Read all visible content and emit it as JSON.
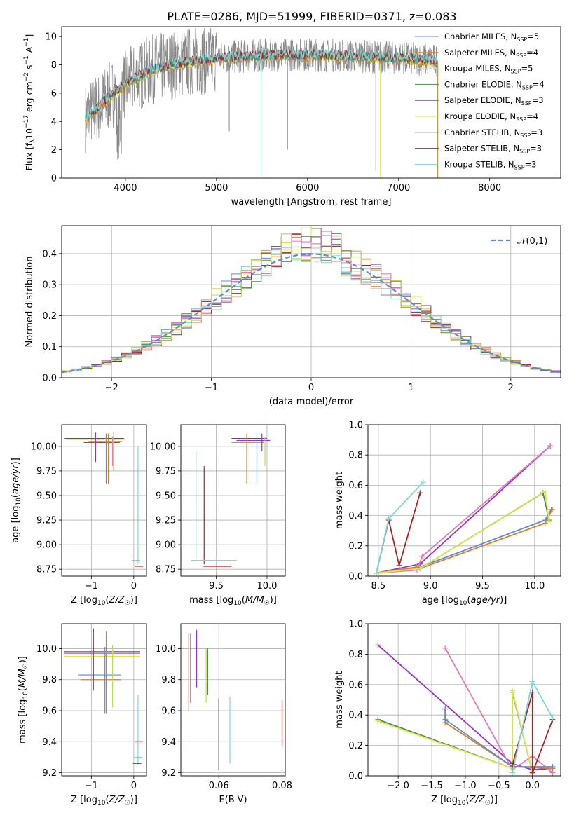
{
  "title": "PLATE=0286, MJD=51999, FIBERID=0371, z=0.083",
  "colors": {
    "Chabrier MILES": "#5b8cd6",
    "Salpeter MILES": "#e07b2a",
    "Kroupa MILES": "#f7c98a",
    "Chabrier ELODIE": "#4d8a4d",
    "Salpeter ELODIE": "#9b30c8",
    "Kroupa ELODIE": "#d8e84a",
    "Chabrier STELIB": "#555555",
    "Salpeter STELIB": "#b22222",
    "Kroupa STELIB": "#7fd6d9",
    "pink": "#e27ab8",
    "lime": "#b8e04a",
    "data": "#888888",
    "gauss": "#5b8cd6"
  },
  "legend_spectrum": [
    {
      "name": "Chabrier MILES",
      "nssp": "5"
    },
    {
      "name": "Salpeter MILES",
      "nssp": "4"
    },
    {
      "name": "Kroupa MILES",
      "nssp": "5"
    },
    {
      "name": "Chabrier ELODIE",
      "nssp": "4"
    },
    {
      "name": "Salpeter ELODIE",
      "nssp": "3"
    },
    {
      "name": "Kroupa ELODIE",
      "nssp": "4"
    },
    {
      "name": "Chabrier STELIB",
      "nssp": "3"
    },
    {
      "name": "Salpeter STELIB",
      "nssp": "3"
    },
    {
      "name": "Kroupa STELIB",
      "nssp": "3"
    }
  ],
  "chart_data": [
    {
      "id": "spectrum",
      "type": "line",
      "xlabel": "wavelength [Angstrom, rest frame]",
      "ylabel": "Flux [f",
      "ylabel_full": "Flux [f_λ 10^-17 erg cm^-2 s^-1 A^-1]",
      "xlim": [
        3300,
        8780
      ],
      "ylim": [
        0,
        10.7
      ],
      "xticks": [
        "4000",
        "5000",
        "6000",
        "7000",
        "8000"
      ],
      "yticks": [
        "0",
        "2",
        "4",
        "6",
        "8",
        "10"
      ],
      "model_continuum": {
        "x": [
          3550,
          3700,
          3900,
          4100,
          4300,
          4500,
          4800,
          5000,
          5300,
          5600,
          6000,
          6400,
          6800,
          7200,
          7420
        ],
        "y": [
          4.2,
          5.0,
          6.2,
          7.0,
          7.7,
          8.0,
          8.3,
          8.5,
          8.6,
          8.7,
          8.7,
          8.65,
          8.55,
          8.4,
          8.3
        ]
      },
      "grid": false
    },
    {
      "id": "residual-hist",
      "type": "histogram",
      "xlabel": "(data-model)/error",
      "ylabel": "Normed distribution",
      "xlim": [
        -2.5,
        2.5
      ],
      "ylim": [
        0,
        0.49
      ],
      "xticks": [
        "−2",
        "−1",
        "0",
        "1",
        "2"
      ],
      "yticks": [
        "0.0",
        "0.1",
        "0.2",
        "0.3",
        "0.4"
      ],
      "legend": "𝒩(0,1)",
      "bin_width": 0.1,
      "grid": true
    },
    {
      "id": "age-vs-Z",
      "type": "errorbar",
      "xlabel": "Z [log10(Z/Z☉)]",
      "ylabel": "age [log10(age/yr)]",
      "xlim": [
        -1.7,
        0.3
      ],
      "ylim": [
        8.68,
        10.22
      ],
      "xticks": [
        "−1",
        "0"
      ],
      "yticks": [
        "8.75",
        "9.00",
        "9.25",
        "9.50",
        "9.75",
        "10.00"
      ],
      "grid": true
    },
    {
      "id": "age-vs-mass",
      "type": "errorbar",
      "xlabel": "mass [log10(M/M☉)]",
      "ylabel": "",
      "xlim": [
        9.15,
        10.18
      ],
      "ylim": [
        8.68,
        10.22
      ],
      "xticks": [
        "9.5",
        "10.0"
      ],
      "yticks": [
        "8.75",
        "9.00",
        "9.25",
        "9.50",
        "9.75",
        "10.00"
      ],
      "grid": true
    },
    {
      "id": "weight-vs-age",
      "type": "line",
      "xlabel": "age [log10(age/yr)]",
      "ylabel": "mass weight",
      "xlim": [
        8.4,
        10.25
      ],
      "ylim": [
        0,
        1.0
      ],
      "xticks": [
        "8.5",
        "9.0",
        "9.5",
        "10.0"
      ],
      "yticks": [
        "0.0",
        "0.2",
        "0.4",
        "0.6",
        "0.8",
        "1.0"
      ],
      "series": [
        {
          "color": "salpeter_elodie",
          "x": [
            8.48,
            8.9,
            10.15
          ],
          "y": [
            0.02,
            0.08,
            0.86
          ]
        },
        {
          "color": "pink",
          "x": [
            8.48,
            8.87,
            8.92,
            10.15
          ],
          "y": [
            0.02,
            0.04,
            0.13,
            0.86
          ]
        },
        {
          "color": "chabrier_miles",
          "x": [
            8.48,
            8.9,
            10.1,
            10.16
          ],
          "y": [
            0.02,
            0.06,
            0.37,
            0.44
          ]
        },
        {
          "color": "salpeter_miles",
          "x": [
            8.48,
            8.87,
            8.9,
            10.1,
            10.17
          ],
          "y": [
            0.02,
            0.06,
            0.05,
            0.35,
            0.44
          ]
        },
        {
          "color": "chabrier_elodie",
          "x": [
            8.48,
            8.9,
            10.08,
            10.14
          ],
          "y": [
            0.02,
            0.05,
            0.55,
            0.37
          ]
        },
        {
          "color": "kroupa_elodie",
          "x": [
            8.48,
            8.9,
            10.1,
            10.14
          ],
          "y": [
            0.02,
            0.05,
            0.56,
            0.36
          ]
        },
        {
          "color": "salpeter_stelib",
          "x": [
            8.48,
            8.6,
            8.7,
            8.9
          ],
          "y": [
            0.02,
            0.37,
            0.07,
            0.55
          ]
        },
        {
          "color": "kroupa_stelib",
          "x": [
            8.48,
            8.6,
            8.93
          ],
          "y": [
            0.02,
            0.38,
            0.62
          ]
        }
      ],
      "grid": true
    },
    {
      "id": "mass-vs-Z",
      "type": "errorbar",
      "xlabel": "Z [log10(Z/Z☉)]",
      "ylabel": "mass [log10(M/M☉)]",
      "xlim": [
        -1.7,
        0.3
      ],
      "ylim": [
        9.18,
        10.16
      ],
      "xticks": [
        "−1",
        "0"
      ],
      "yticks": [
        "9.2",
        "9.4",
        "9.6",
        "9.8",
        "10.0"
      ],
      "grid": true
    },
    {
      "id": "mass-vs-ebv",
      "type": "errorbar",
      "xlabel": "E(B-V)",
      "ylabel": "",
      "xlim": [
        0.048,
        0.081
      ],
      "ylim": [
        9.18,
        10.16
      ],
      "xticks": [
        "0.06",
        "0.08"
      ],
      "yticks": [
        "9.2",
        "9.4",
        "9.6",
        "9.8",
        "10.0"
      ],
      "grid": true
    },
    {
      "id": "weight-vs-Z",
      "type": "line",
      "xlabel": "Z [log10(Z/Z☉)]",
      "ylabel": "mass weight",
      "xlim": [
        -2.45,
        0.42
      ],
      "ylim": [
        0,
        1.0
      ],
      "xticks": [
        "−2.0",
        "−1.5",
        "−1.0",
        "−0.5",
        "0.0"
      ],
      "yticks": [
        "0.0",
        "0.2",
        "0.4",
        "0.6",
        "0.8",
        "1.0"
      ],
      "series": [
        {
          "color": "salpeter_elodie",
          "x": [
            -2.3,
            -0.3,
            0.0,
            0.3
          ],
          "y": [
            0.86,
            0.08,
            0.04,
            0.05
          ]
        },
        {
          "color": "pink",
          "x": [
            -1.3,
            -0.3,
            0.0,
            0.3
          ],
          "y": [
            0.84,
            0.04,
            0.13,
            0.02
          ]
        },
        {
          "color": "chabrier_elodie",
          "x": [
            -2.3,
            -0.3,
            -0.3,
            0.0
          ],
          "y": [
            0.37,
            0.05,
            0.55,
            0.02
          ]
        },
        {
          "color": "kroupa_elodie",
          "x": [
            -2.3,
            -0.3,
            -0.3,
            0.0
          ],
          "y": [
            0.36,
            0.05,
            0.56,
            0.02
          ]
        },
        {
          "color": "salpeter_miles",
          "x": [
            -1.3,
            -1.3,
            -0.3,
            0.3
          ],
          "y": [
            0.44,
            0.35,
            0.06,
            0.05
          ]
        },
        {
          "color": "chabrier_miles",
          "x": [
            -1.3,
            -1.3,
            -0.3,
            0.3
          ],
          "y": [
            0.44,
            0.37,
            0.06,
            0.06
          ]
        },
        {
          "color": "salpeter_stelib",
          "x": [
            -0.3,
            0.0,
            0.0,
            0.3
          ],
          "y": [
            0.07,
            0.55,
            0.02,
            0.37
          ]
        },
        {
          "color": "kroupa_stelib",
          "x": [
            -0.3,
            0.0,
            0.3
          ],
          "y": [
            0.02,
            0.62,
            0.38
          ]
        }
      ],
      "grid": true
    }
  ]
}
